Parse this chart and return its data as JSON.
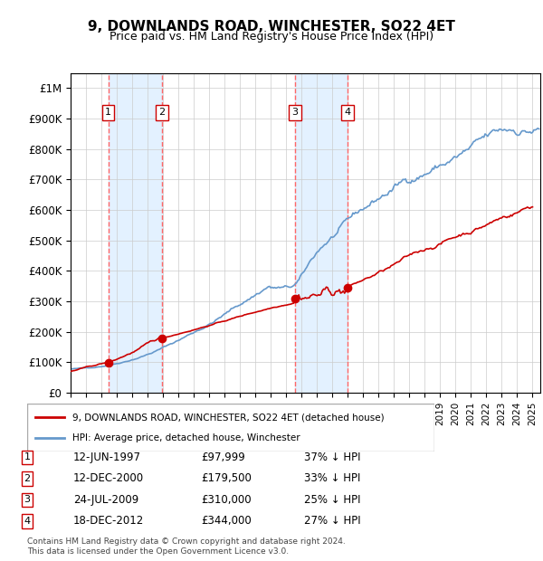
{
  "title": "9, DOWNLANDS ROAD, WINCHESTER, SO22 4ET",
  "subtitle": "Price paid vs. HM Land Registry's House Price Index (HPI)",
  "sales": [
    {
      "date_num": 1997.44,
      "price": 97999,
      "label": "1"
    },
    {
      "date_num": 2000.94,
      "price": 179500,
      "label": "2"
    },
    {
      "date_num": 2009.56,
      "price": 310000,
      "label": "3"
    },
    {
      "date_num": 2012.96,
      "price": 344000,
      "label": "4"
    }
  ],
  "sale_labels": [
    {
      "num": "1",
      "date": "12-JUN-1997",
      "price": "£97,999",
      "pct": "37% ↓ HPI"
    },
    {
      "num": "2",
      "date": "12-DEC-2000",
      "price": "£179,500",
      "pct": "33% ↓ HPI"
    },
    {
      "num": "3",
      "date": "24-JUL-2009",
      "price": "£310,000",
      "pct": "25% ↓ HPI"
    },
    {
      "num": "4",
      "date": "18-DEC-2012",
      "price": "£344,000",
      "pct": "27% ↓ HPI"
    }
  ],
  "ylim": [
    0,
    1050000
  ],
  "xlim_start": 1995.0,
  "xlim_end": 2025.5,
  "red_line_color": "#cc0000",
  "blue_line_color": "#6699cc",
  "sale_dot_color": "#cc0000",
  "vline_color": "#ff6666",
  "shade_color": "#ddeeff",
  "legend_label_red": "9, DOWNLANDS ROAD, WINCHESTER, SO22 4ET (detached house)",
  "legend_label_blue": "HPI: Average price, detached house, Winchester",
  "footer": "Contains HM Land Registry data © Crown copyright and database right 2024.\nThis data is licensed under the Open Government Licence v3.0.",
  "yticks": [
    0,
    100000,
    200000,
    300000,
    400000,
    500000,
    600000,
    700000,
    800000,
    900000,
    1000000
  ],
  "ytick_labels": [
    "£0",
    "£100K",
    "£200K",
    "£300K",
    "£400K",
    "£500K",
    "£600K",
    "£700K",
    "£800K",
    "£900K",
    "£1M"
  ]
}
